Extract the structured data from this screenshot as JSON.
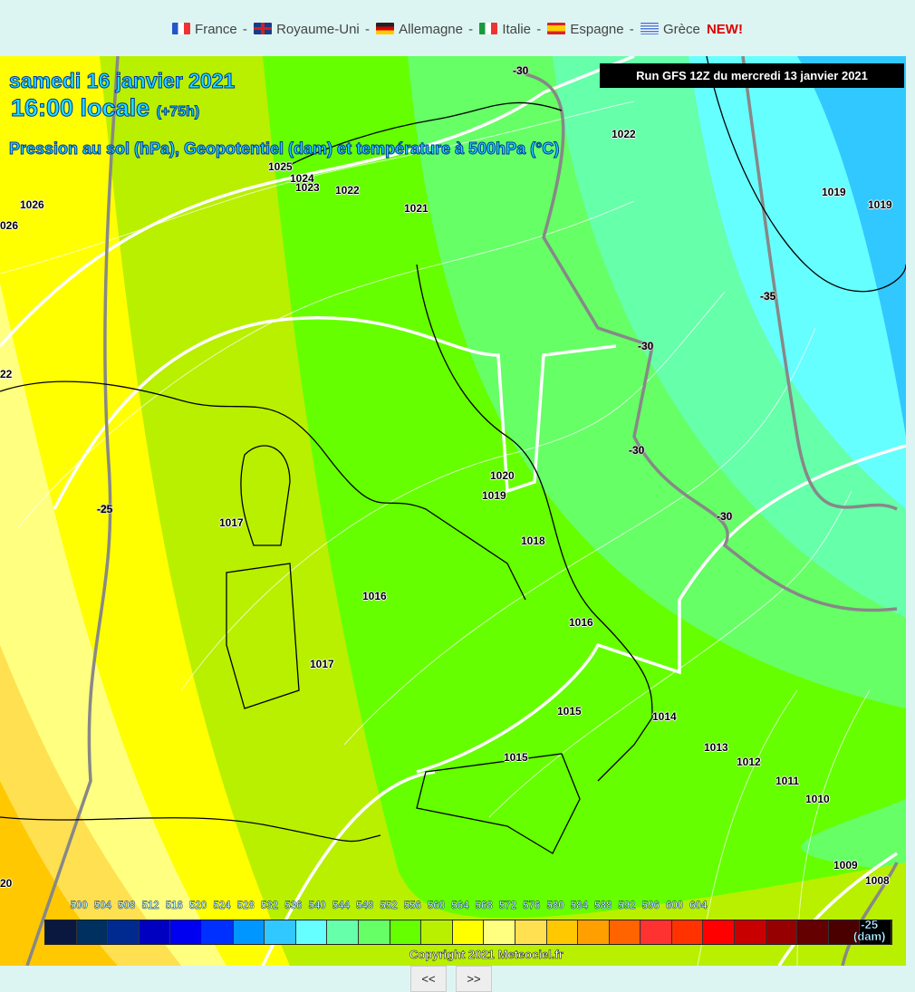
{
  "nav": {
    "items": [
      {
        "label": "France",
        "flag": "france-flag",
        "sep": "-"
      },
      {
        "label": "Royaume-Uni",
        "flag": "uk-flag",
        "sep": "-"
      },
      {
        "label": "Allemagne",
        "flag": "germany-flag",
        "sep": "-"
      },
      {
        "label": "Italie",
        "flag": "italy-flag",
        "sep": "-"
      },
      {
        "label": "Espagne",
        "flag": "spain-flag",
        "sep": "-"
      },
      {
        "label": "Grèce",
        "flag": "greece-flag",
        "sep": ""
      }
    ],
    "new_badge": "NEW!"
  },
  "map": {
    "date": "samedi 16 janvier 2021",
    "time": "16:00 locale",
    "offset": "(+75h)",
    "subtitle": "Pression au sol (hPa), Geopotentiel (dam) et température à 500hPa (°C)",
    "run": "Run GFS 12Z du mercredi 13 janvier 2021",
    "pressure_labels": [
      "1026",
      "026",
      "1025",
      "1024",
      "1023",
      "1022",
      "1021",
      "1022",
      "1019",
      "1019",
      "1017",
      "1016",
      "1017",
      "1020",
      "1019",
      "1018",
      "1016",
      "1015",
      "1014",
      "1015",
      "1013",
      "1012",
      "1011",
      "1010",
      "1009",
      "1008",
      "22",
      "20"
    ],
    "temperature_labels": [
      "-30",
      "-30",
      "-30",
      "-30",
      "-35",
      "-25"
    ]
  },
  "legend": {
    "values": [
      "500",
      "504",
      "508",
      "512",
      "516",
      "520",
      "524",
      "528",
      "532",
      "536",
      "540",
      "544",
      "548",
      "552",
      "556",
      "560",
      "564",
      "568",
      "572",
      "576",
      "580",
      "584",
      "588",
      "592",
      "596",
      "600",
      "604"
    ],
    "colors": [
      "#0a1840",
      "#003060",
      "#002a90",
      "#0000c0",
      "#0000f0",
      "#0030ff",
      "#0096ff",
      "#30c8ff",
      "#66ffff",
      "#66ffaa",
      "#66ff66",
      "#66ff00",
      "#b8f000",
      "#ffff00",
      "#ffff80",
      "#ffe050",
      "#ffc800",
      "#ffa000",
      "#ff6400",
      "#ff3232",
      "#ff3200",
      "#ff0000",
      "#c80000",
      "#960000",
      "#640000",
      "#4b0000",
      "#000000"
    ],
    "temp_value": "-25",
    "unit": "(dam)",
    "copyright": "Copyright 2021 Meteociel.fr"
  },
  "pager": {
    "prev": "<<",
    "next": ">>"
  }
}
